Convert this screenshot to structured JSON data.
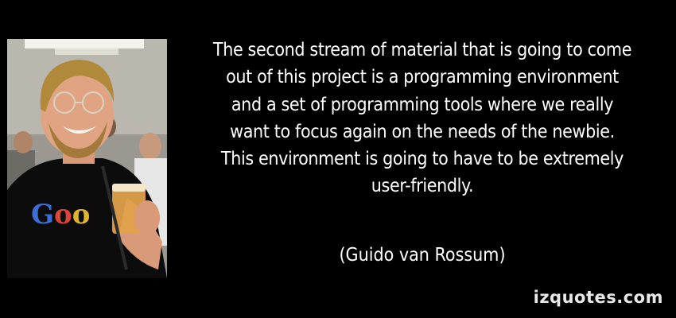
{
  "quote": {
    "lines": [
      "The second stream of material that is going to come",
      "out of this project is a programming environment",
      "and a set of programming tools where we really",
      "want to focus again on the needs of the newbie.",
      "This environment is going to have to be extremely",
      "user-friendly."
    ],
    "author": "(Guido van Rossum)"
  },
  "watermark": "izquotes.com",
  "photo": {
    "subject": "portrait-photo",
    "shirt_logo_text": "Goo"
  },
  "colors": {
    "background": "#000000",
    "text": "#ffffff",
    "watermark": "#e8e8e8"
  }
}
